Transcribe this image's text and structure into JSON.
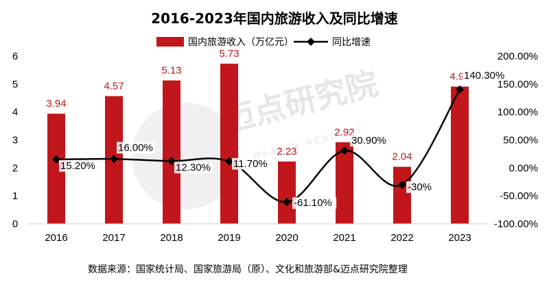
{
  "chart_data": {
    "type": "bar",
    "title": "2016-2023年国内旅游收入及同比增速",
    "categories": [
      "2016",
      "2017",
      "2018",
      "2019",
      "2020",
      "2021",
      "2022",
      "2023"
    ],
    "series": [
      {
        "name": "国内旅游收入（万亿元）",
        "type": "bar",
        "axis": "left",
        "color": "#c0161c",
        "values": [
          3.94,
          4.57,
          5.13,
          5.73,
          2.23,
          2.92,
          2.04,
          4.91
        ],
        "labels": [
          "3.94",
          "4.57",
          "5.13",
          "5.73",
          "2.23",
          "2.92",
          "2.04",
          "4.91"
        ]
      },
      {
        "name": "同比增速",
        "type": "line",
        "axis": "right",
        "color": "#000000",
        "values": [
          15.2,
          16.0,
          12.3,
          11.7,
          -61.1,
          30.9,
          -30,
          140.3
        ],
        "labels": [
          "15.20%",
          "16.00%",
          "12.30%",
          "11.70%",
          "-61.10%",
          "30.90%",
          "-30%",
          "140.30%"
        ]
      }
    ],
    "y_left": {
      "min": 0,
      "max": 6,
      "ticks": [
        "0",
        "1",
        "2",
        "3",
        "4",
        "5",
        "6"
      ]
    },
    "y_right": {
      "min": -100,
      "max": 200,
      "ticks": [
        "-100.00%",
        "-50.00%",
        "0.00%",
        "50.00%",
        "100.00%",
        "150.00%",
        "200.00%"
      ]
    },
    "grid": false,
    "legend_position": "top"
  },
  "source": "数据来源：国家统计局、国家旅游局（原）、文化和旅游部&迈点研究院整理",
  "watermark": {
    "text": "迈点研究院",
    "subtext": "MEADIN ACADEMY"
  }
}
